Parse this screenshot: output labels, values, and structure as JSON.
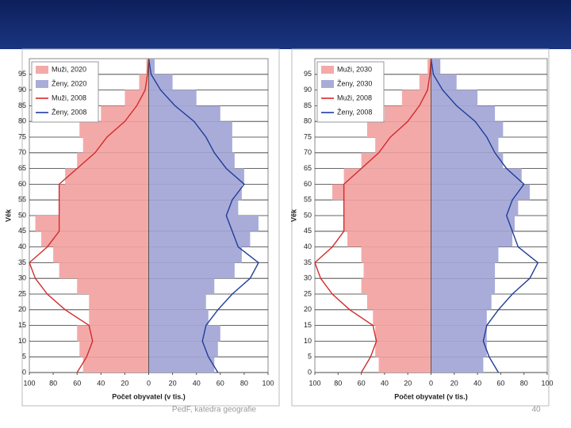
{
  "chart_data": [
    {
      "type": "pyramid",
      "xlabel": "Počet obyvatel (v tis.)",
      "ylabel": "Věk",
      "y": [
        0,
        5,
        10,
        15,
        20,
        25,
        30,
        35,
        40,
        45,
        50,
        55,
        60,
        65,
        70,
        75,
        80,
        85,
        90,
        95,
        100
      ],
      "ylim": [
        0,
        100
      ],
      "yticks": [
        0,
        5,
        10,
        15,
        20,
        25,
        30,
        35,
        40,
        45,
        50,
        55,
        60,
        65,
        70,
        75,
        80,
        85,
        90,
        95
      ],
      "xlim": [
        -100,
        100
      ],
      "xticks": [
        {
          "value": -100,
          "label": "100"
        },
        {
          "value": -80,
          "label": "80"
        },
        {
          "value": -60,
          "label": "60"
        },
        {
          "value": -40,
          "label": "40"
        },
        {
          "value": -20,
          "label": "20"
        },
        0,
        20,
        40,
        60,
        80,
        100
      ],
      "grid": true,
      "series": [
        {
          "name": "Muži, 2020",
          "mark": "bar",
          "color": "#f4a9a9",
          "values": [
            -55,
            -58,
            -60,
            -50,
            -50,
            -60,
            -75,
            -80,
            -90,
            -95,
            -75,
            -75,
            -70,
            -60,
            -55,
            -58,
            -40,
            -20,
            -8,
            -2,
            0
          ]
        },
        {
          "name": "Ženy, 2020",
          "mark": "bar",
          "color": "#a9acd9",
          "values": [
            55,
            58,
            60,
            50,
            48,
            55,
            72,
            78,
            85,
            92,
            75,
            78,
            80,
            72,
            70,
            70,
            60,
            40,
            20,
            5,
            0
          ]
        },
        {
          "name": "Muži, 2008",
          "mark": "line",
          "color": "#d42a2a",
          "values": [
            -60,
            -52,
            -47,
            -50,
            -70,
            -85,
            -95,
            -100,
            -85,
            -75,
            -75,
            -75,
            -75,
            -60,
            -45,
            -35,
            -20,
            -10,
            -3,
            -1,
            0
          ]
        },
        {
          "name": "Ženy, 2008",
          "mark": "line",
          "color": "#1f3d99",
          "values": [
            58,
            50,
            45,
            48,
            58,
            70,
            85,
            92,
            75,
            70,
            65,
            70,
            80,
            65,
            55,
            48,
            38,
            22,
            10,
            2,
            0
          ]
        }
      ]
    },
    {
      "type": "pyramid",
      "xlabel": "Počet obyvatel (v tis.)",
      "ylabel": "Věk",
      "y": [
        0,
        5,
        10,
        15,
        20,
        25,
        30,
        35,
        40,
        45,
        50,
        55,
        60,
        65,
        70,
        75,
        80,
        85,
        90,
        95,
        100
      ],
      "ylim": [
        0,
        100
      ],
      "yticks": [
        0,
        5,
        10,
        15,
        20,
        25,
        30,
        35,
        40,
        45,
        50,
        55,
        60,
        65,
        70,
        75,
        80,
        85,
        90,
        95
      ],
      "xlim": [
        -100,
        100
      ],
      "xticks": [
        {
          "value": -100,
          "label": "100"
        },
        {
          "value": -80,
          "label": "80"
        },
        {
          "value": -60,
          "label": "60"
        },
        {
          "value": -40,
          "label": "40"
        },
        {
          "value": -20,
          "label": "20"
        },
        0,
        20,
        40,
        60,
        80,
        100
      ],
      "grid": true,
      "series": [
        {
          "name": "Muži, 2030",
          "mark": "bar",
          "color": "#f4a9a9",
          "values": [
            -45,
            -48,
            -48,
            -50,
            -55,
            -60,
            -58,
            -60,
            -72,
            -75,
            -75,
            -85,
            -75,
            -60,
            -48,
            -55,
            -40,
            -25,
            -10,
            -3,
            0
          ]
        },
        {
          "name": "Ženy, 2030",
          "mark": "bar",
          "color": "#a9acd9",
          "values": [
            45,
            48,
            48,
            48,
            52,
            55,
            55,
            58,
            70,
            72,
            75,
            85,
            78,
            62,
            58,
            62,
            55,
            40,
            22,
            8,
            0
          ]
        },
        {
          "name": "Muži, 2008",
          "mark": "line",
          "color": "#d42a2a",
          "values": [
            -60,
            -52,
            -47,
            -50,
            -70,
            -85,
            -95,
            -100,
            -85,
            -75,
            -75,
            -75,
            -75,
            -60,
            -45,
            -35,
            -20,
            -10,
            -3,
            -1,
            0
          ]
        },
        {
          "name": "Ženy, 2008",
          "mark": "line",
          "color": "#1f3d99",
          "values": [
            58,
            50,
            45,
            48,
            58,
            70,
            85,
            92,
            75,
            70,
            65,
            70,
            80,
            65,
            55,
            48,
            38,
            22,
            10,
            2,
            0
          ]
        }
      ]
    }
  ],
  "footer": {
    "source": "PedF, katedra geografie",
    "page": "40"
  }
}
